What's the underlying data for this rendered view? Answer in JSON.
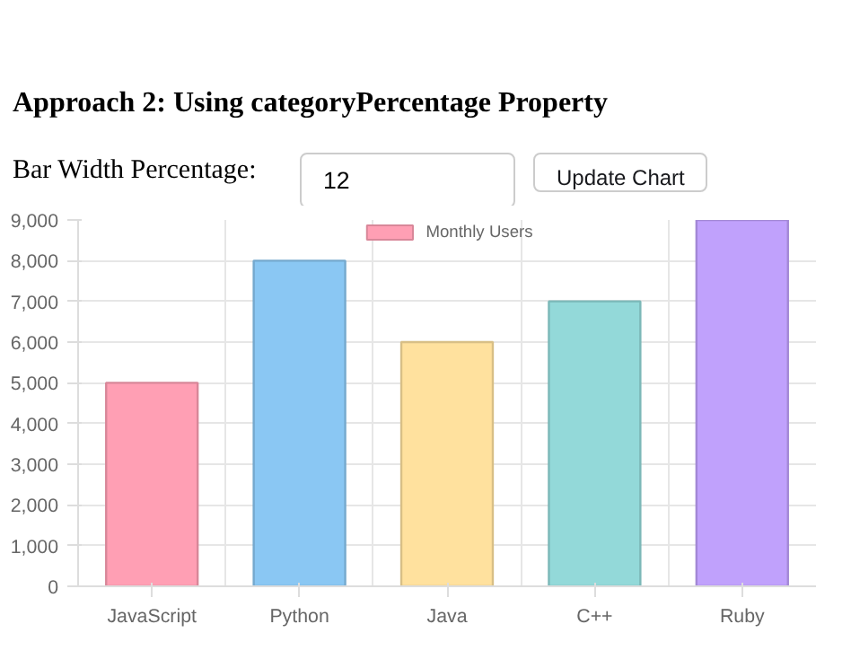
{
  "chart_data": {
    "type": "bar",
    "title": "Approach 2: Using categoryPercentage Property",
    "annotations": [
      "Bar Width Percentage:",
      "12",
      "Update Chart"
    ],
    "categories": [
      "JavaScript",
      "Python",
      "Java",
      "C++",
      "Ruby"
    ],
    "series": [
      {
        "name": "Monthly Users",
        "values": [
          5000,
          8000,
          6000,
          7000,
          9000
        ]
      }
    ],
    "colors": [
      "#ff9fb4",
      "#8ac7f3",
      "#ffe19e",
      "#93d9d9",
      "#c0a1fc"
    ],
    "ylim": [
      0,
      9000
    ],
    "yticks": [
      0,
      {
        "value": 1000,
        "label": "1,000"
      },
      {
        "value": 2000,
        "label": "2,000"
      },
      {
        "value": 3000,
        "label": "3,000"
      },
      {
        "value": 4000,
        "label": "4,000"
      },
      {
        "value": 5000,
        "label": "5,000"
      },
      {
        "value": 6000,
        "label": "6,000"
      },
      {
        "value": 7000,
        "label": "7,000"
      },
      {
        "value": 8000,
        "label": "8,000"
      },
      {
        "value": 9000,
        "label": "9,000"
      }
    ],
    "grid": true,
    "legend": "top"
  }
}
